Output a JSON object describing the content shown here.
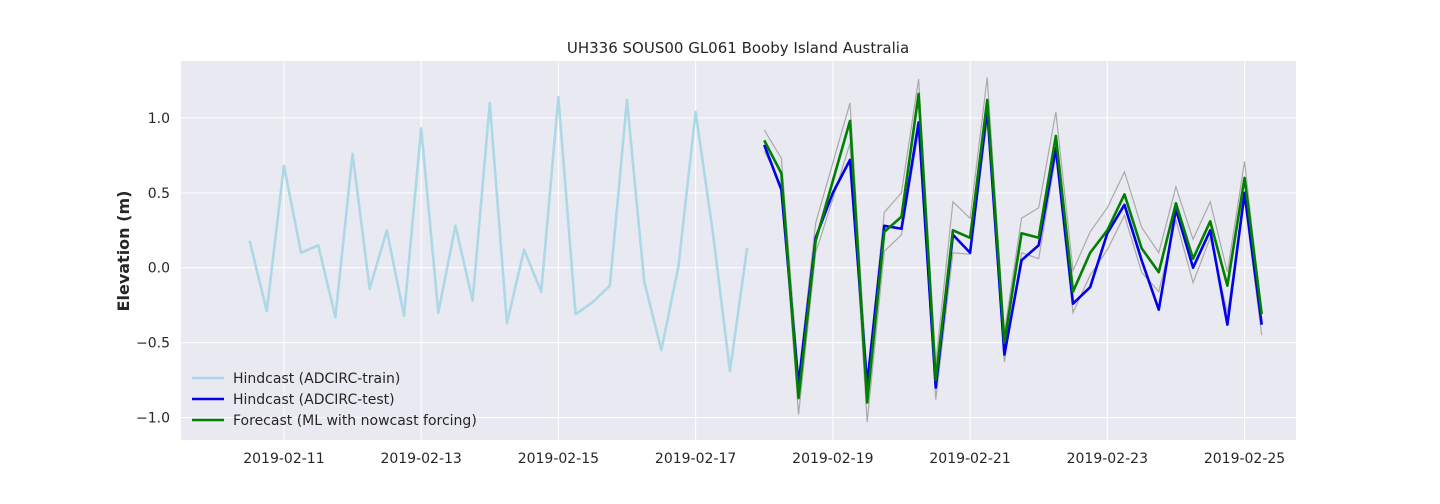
{
  "chart_data": {
    "type": "line",
    "title": "UH336 SOUS00 GL061 Booby Island Australia",
    "xlabel": "",
    "ylabel": "Elevation (m)",
    "ylim": [
      -1.15,
      1.38
    ],
    "xlim": [
      "2019-02-09 12:00",
      "2019-02-25 18:00"
    ],
    "grid": true,
    "legend_position": "lower-left",
    "x_ticks": [
      "2019-02-11",
      "2019-02-13",
      "2019-02-15",
      "2019-02-17",
      "2019-02-19",
      "2019-02-21",
      "2019-02-23",
      "2019-02-25"
    ],
    "y_ticks": [
      1.0,
      0.5,
      0.0,
      -0.5,
      -1.0
    ],
    "y_tick_labels": [
      "1.0",
      "0.5",
      "0.0",
      "−0.5",
      "−1.0"
    ],
    "colors": {
      "plot_bg": "#e9e9f1",
      "grid": "#ffffff",
      "train": "#add8e6",
      "test": "#0000ee",
      "forecast": "#008000",
      "band": "#aaaaaa"
    },
    "series": [
      {
        "name": "Hindcast (ADCIRC-train)",
        "color": "#add8e6",
        "x": [
          "2019-02-10 12:00",
          "2019-02-10 18:00",
          "2019-02-11 00:00",
          "2019-02-11 06:00",
          "2019-02-11 12:00",
          "2019-02-11 18:00",
          "2019-02-12 00:00",
          "2019-02-12 06:00",
          "2019-02-12 12:00",
          "2019-02-12 18:00",
          "2019-02-13 00:00",
          "2019-02-13 06:00",
          "2019-02-13 12:00",
          "2019-02-13 18:00",
          "2019-02-14 00:00",
          "2019-02-14 06:00",
          "2019-02-14 12:00",
          "2019-02-14 18:00",
          "2019-02-15 00:00",
          "2019-02-15 06:00",
          "2019-02-15 12:00",
          "2019-02-15 18:00",
          "2019-02-16 00:00",
          "2019-02-16 06:00",
          "2019-02-16 12:00",
          "2019-02-16 18:00",
          "2019-02-17 00:00",
          "2019-02-17 06:00",
          "2019-02-17 12:00",
          "2019-02-17 18:00"
        ],
        "values": [
          0.18,
          -0.29,
          0.68,
          0.1,
          0.15,
          -0.33,
          0.76,
          -0.14,
          0.25,
          -0.32,
          0.93,
          -0.3,
          0.28,
          -0.22,
          1.1,
          -0.37,
          0.12,
          -0.16,
          1.14,
          -0.31,
          -0.23,
          -0.12,
          1.12,
          -0.09,
          -0.55,
          0.01,
          1.04,
          0.24,
          -0.69,
          0.13
        ]
      },
      {
        "name": "Hindcast (ADCIRC-test)",
        "color": "#0000ee",
        "x": [
          "2019-02-18 00:00",
          "2019-02-18 06:00",
          "2019-02-18 12:00",
          "2019-02-18 18:00",
          "2019-02-19 00:00",
          "2019-02-19 06:00",
          "2019-02-19 12:00",
          "2019-02-19 18:00",
          "2019-02-20 00:00",
          "2019-02-20 06:00",
          "2019-02-20 12:00",
          "2019-02-20 18:00",
          "2019-02-21 00:00",
          "2019-02-21 06:00",
          "2019-02-21 12:00",
          "2019-02-21 18:00",
          "2019-02-22 00:00",
          "2019-02-22 06:00",
          "2019-02-22 12:00",
          "2019-02-22 18:00",
          "2019-02-23 00:00",
          "2019-02-23 06:00",
          "2019-02-23 12:00",
          "2019-02-23 18:00",
          "2019-02-24 00:00",
          "2019-02-24 06:00",
          "2019-02-24 12:00",
          "2019-02-24 18:00",
          "2019-02-25 00:00",
          "2019-02-25 06:00"
        ],
        "values": [
          0.82,
          0.52,
          -0.78,
          0.2,
          0.5,
          0.72,
          -0.78,
          0.28,
          0.26,
          0.97,
          -0.8,
          0.22,
          0.1,
          1.06,
          -0.58,
          0.05,
          0.15,
          0.8,
          -0.24,
          -0.13,
          0.23,
          0.42,
          0.05,
          -0.28,
          0.39,
          0.0,
          0.25,
          -0.38,
          0.5,
          -0.38
        ]
      },
      {
        "name": "Forecast (ML with nowcast forcing)",
        "color": "#008000",
        "x": [
          "2019-02-18 00:00",
          "2019-02-18 06:00",
          "2019-02-18 12:00",
          "2019-02-18 18:00",
          "2019-02-19 00:00",
          "2019-02-19 06:00",
          "2019-02-19 12:00",
          "2019-02-19 18:00",
          "2019-02-20 00:00",
          "2019-02-20 06:00",
          "2019-02-20 12:00",
          "2019-02-20 18:00",
          "2019-02-21 00:00",
          "2019-02-21 06:00",
          "2019-02-21 12:00",
          "2019-02-21 18:00",
          "2019-02-22 00:00",
          "2019-02-22 06:00",
          "2019-02-22 12:00",
          "2019-02-22 18:00",
          "2019-02-23 00:00",
          "2019-02-23 06:00",
          "2019-02-23 12:00",
          "2019-02-23 18:00",
          "2019-02-24 00:00",
          "2019-02-24 06:00",
          "2019-02-24 12:00",
          "2019-02-24 18:00",
          "2019-02-25 00:00",
          "2019-02-25 06:00"
        ],
        "values": [
          0.85,
          0.63,
          -0.87,
          0.18,
          0.58,
          0.98,
          -0.9,
          0.24,
          0.34,
          1.16,
          -0.75,
          0.25,
          0.2,
          1.12,
          -0.5,
          0.23,
          0.2,
          0.88,
          -0.16,
          0.1,
          0.25,
          0.49,
          0.13,
          -0.03,
          0.43,
          0.06,
          0.31,
          -0.12,
          0.6,
          -0.31
        ]
      }
    ],
    "uncertainty_band": {
      "color": "#aaaaaa",
      "x": [
        "2019-02-18 00:00",
        "2019-02-18 06:00",
        "2019-02-18 12:00",
        "2019-02-18 18:00",
        "2019-02-19 00:00",
        "2019-02-19 06:00",
        "2019-02-19 12:00",
        "2019-02-19 18:00",
        "2019-02-20 00:00",
        "2019-02-20 06:00",
        "2019-02-20 12:00",
        "2019-02-20 18:00",
        "2019-02-21 00:00",
        "2019-02-21 06:00",
        "2019-02-21 12:00",
        "2019-02-21 18:00",
        "2019-02-22 00:00",
        "2019-02-22 06:00",
        "2019-02-22 12:00",
        "2019-02-22 18:00",
        "2019-02-23 00:00",
        "2019-02-23 06:00",
        "2019-02-23 12:00",
        "2019-02-23 18:00",
        "2019-02-24 00:00",
        "2019-02-24 06:00",
        "2019-02-24 12:00",
        "2019-02-24 18:00",
        "2019-02-25 00:00",
        "2019-02-25 06:00"
      ],
      "upper": [
        0.92,
        0.73,
        -0.73,
        0.3,
        0.7,
        1.1,
        -0.75,
        0.37,
        0.5,
        1.26,
        -0.64,
        0.44,
        0.33,
        1.27,
        -0.43,
        0.33,
        0.4,
        1.04,
        -0.02,
        0.24,
        0.4,
        0.64,
        0.27,
        0.1,
        0.54,
        0.19,
        0.44,
        -0.03,
        0.71,
        -0.3
      ],
      "lower": [
        0.78,
        0.55,
        -0.98,
        0.1,
        0.46,
        0.83,
        -1.03,
        0.11,
        0.22,
        0.91,
        -0.88,
        0.1,
        0.09,
        0.98,
        -0.63,
        0.1,
        0.06,
        0.75,
        -0.3,
        -0.05,
        0.12,
        0.35,
        -0.03,
        -0.16,
        0.32,
        -0.1,
        0.2,
        -0.3,
        0.45,
        -0.45
      ]
    }
  }
}
